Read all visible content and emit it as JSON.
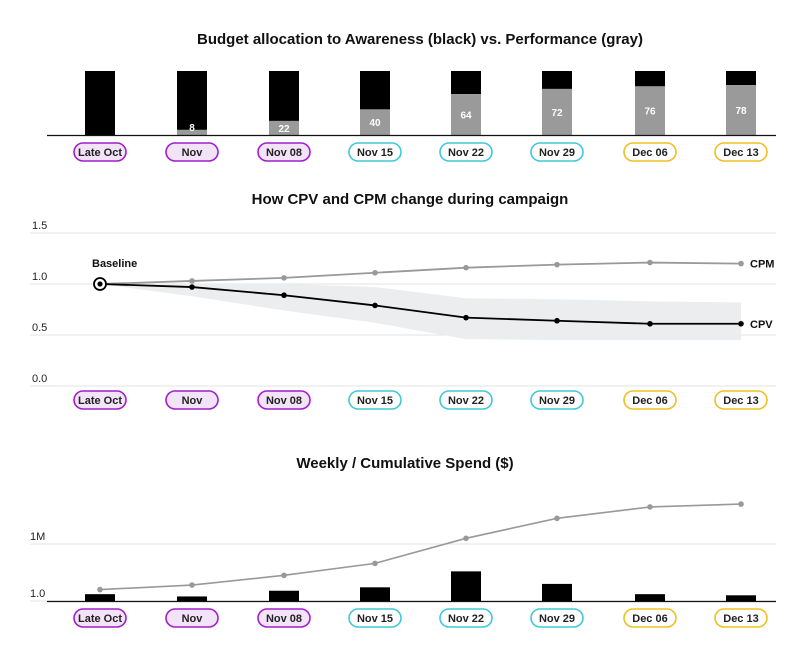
{
  "periods": [
    {
      "label": "Late Oct",
      "group": "oct"
    },
    {
      "label": "Nov",
      "group": "oct"
    },
    {
      "label": "Nov 08",
      "group": "oct"
    },
    {
      "label": "Nov 15",
      "group": "nov"
    },
    {
      "label": "Nov 22",
      "group": "nov"
    },
    {
      "label": "Nov 29",
      "group": "nov"
    },
    {
      "label": "Dec 06",
      "group": "dec"
    },
    {
      "label": "Dec 13",
      "group": "dec"
    }
  ],
  "colors": {
    "awareness": "#000000",
    "performance": "#9a9a9a",
    "cpm_line": "#999999",
    "cpv_line": "#000000",
    "band": "#ecedee",
    "grid": "#e3e3e3",
    "pill_oct_border": "#a020c8",
    "pill_oct_fill": "#f3e3f8",
    "pill_nov_border": "#40c8d8",
    "pill_nov_fill": "#ffffff",
    "pill_dec_border": "#f0c020",
    "pill_dec_fill": "#ffffff"
  },
  "chart_data": [
    {
      "type": "bar",
      "stacked": true,
      "title": "Budget allocation to Awareness (black) vs. Performance (gray)",
      "categories": [
        "Late Oct",
        "Nov",
        "Nov 08",
        "Nov 15",
        "Nov 22",
        "Nov 29",
        "Dec 06",
        "Dec 13"
      ],
      "series": [
        {
          "name": "Awareness",
          "values": [
            100,
            92,
            78,
            60,
            36,
            28,
            24,
            22
          ]
        },
        {
          "name": "Performance",
          "values": [
            0,
            8,
            22,
            40,
            64,
            72,
            76,
            78
          ]
        }
      ],
      "data_labels": [
        "",
        "8",
        "22",
        "40",
        "64",
        "72",
        "76",
        "78"
      ],
      "ylim": [
        0,
        100
      ]
    },
    {
      "type": "line",
      "title": "How CPV and CPM change during campaign",
      "categories": [
        "Late Oct",
        "Nov",
        "Nov 08",
        "Nov 15",
        "Nov 22",
        "Nov 29",
        "Dec 06",
        "Dec 13"
      ],
      "y_ticks": [
        "1.5",
        "1.0",
        "0.5",
        "0.0"
      ],
      "ylim": [
        0,
        1.5
      ],
      "series": [
        {
          "name": "CPM",
          "values": [
            1.0,
            1.03,
            1.06,
            1.11,
            1.16,
            1.19,
            1.21,
            1.2
          ]
        },
        {
          "name": "CPV",
          "values": [
            1.0,
            0.97,
            0.89,
            0.79,
            0.67,
            0.64,
            0.61,
            0.61
          ]
        }
      ],
      "band": {
        "upper": [
          1.0,
          1.0,
          1.0,
          0.97,
          0.86,
          0.85,
          0.83,
          0.82
        ],
        "lower": [
          1.0,
          0.88,
          0.74,
          0.62,
          0.46,
          0.45,
          0.45,
          0.45
        ]
      },
      "annotation": "Baseline",
      "grid": true
    },
    {
      "type": "bar",
      "title": "Weekly / Cumulative Spend ($)",
      "categories": [
        "Late Oct",
        "Nov",
        "Nov 08",
        "Nov 15",
        "Nov 22",
        "Nov 29",
        "Dec 06",
        "Dec 13"
      ],
      "y_ticks": [
        "1M",
        "1.0"
      ],
      "series": [
        {
          "name": "Weekly",
          "type": "bar",
          "values": [
            0.12,
            0.08,
            0.18,
            0.24,
            0.52,
            0.3,
            0.12,
            0.1
          ]
        },
        {
          "name": "Cumulative",
          "type": "line",
          "values": [
            0.2,
            0.28,
            0.45,
            0.66,
            1.1,
            1.45,
            1.65,
            1.7
          ]
        }
      ],
      "grid": true
    }
  ]
}
